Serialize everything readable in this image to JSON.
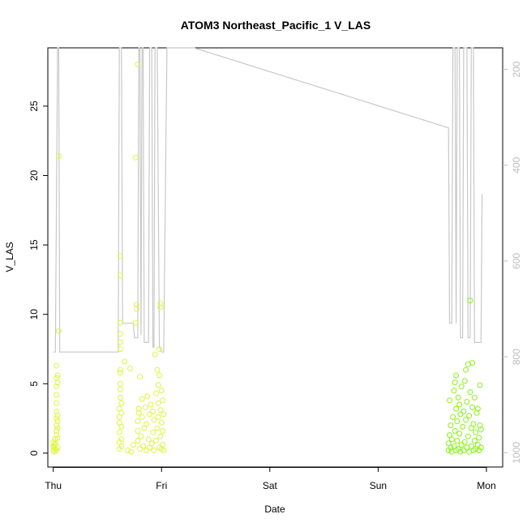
{
  "chart_data": {
    "type": "scatter",
    "title": "ATOM3 Northeast_Pacific_1 V_LAS",
    "xlabel": "Date",
    "ylabel": "V_LAS",
    "x_ticks": [
      "Thu",
      "Fri",
      "Sat",
      "Sun",
      "Mon"
    ],
    "y_ticks": [
      0,
      5,
      10,
      15,
      20,
      25
    ],
    "right_ticks": [
      200,
      400,
      600,
      800,
      1000
    ],
    "x_range_days": [
      -0.05,
      4.15
    ],
    "ylim": [
      -1,
      29.2
    ],
    "right_ylim": [
      155,
      1030
    ],
    "colors": {
      "point_early": "#ddf542",
      "point_late": "#88f21a",
      "secondary_line": "#c8c8c8",
      "right_axis": "#bdbdbd"
    },
    "series": [
      {
        "type": "scatter",
        "points": [
          [
            0.0,
            0.2
          ],
          [
            0.0,
            0.5
          ],
          [
            0.0,
            0.8
          ],
          [
            0.01,
            0.1
          ],
          [
            0.01,
            0.4
          ],
          [
            0.01,
            0.6
          ],
          [
            0.02,
            0.3
          ],
          [
            0.02,
            0.7
          ],
          [
            0.02,
            1.0
          ],
          [
            0.03,
            0.2
          ],
          [
            0.03,
            1.3
          ],
          [
            0.03,
            1.6
          ],
          [
            0.03,
            2.0
          ],
          [
            0.03,
            2.5
          ],
          [
            0.03,
            3.0
          ],
          [
            0.03,
            3.6
          ],
          [
            0.03,
            4.2
          ],
          [
            0.03,
            4.8
          ],
          [
            0.03,
            5.4
          ],
          [
            0.03,
            6.3
          ],
          [
            0.04,
            0.4
          ],
          [
            0.04,
            1.1
          ],
          [
            0.04,
            1.8
          ],
          [
            0.04,
            2.3
          ],
          [
            0.04,
            2.7
          ],
          [
            0.04,
            5.1
          ],
          [
            0.04,
            5.6
          ],
          [
            0.05,
            21.4
          ],
          [
            0.05,
            8.8
          ],
          [
            0.61,
            0.3
          ],
          [
            0.61,
            0.8
          ],
          [
            0.61,
            1.5
          ],
          [
            0.61,
            2.2
          ],
          [
            0.61,
            2.6
          ],
          [
            0.61,
            3.2
          ],
          [
            0.62,
            4.0
          ],
          [
            0.62,
            4.6
          ],
          [
            0.62,
            5.0
          ],
          [
            0.62,
            5.8
          ],
          [
            0.62,
            6.0
          ],
          [
            0.62,
            7.5
          ],
          [
            0.62,
            8.0
          ],
          [
            0.62,
            8.6
          ],
          [
            0.62,
            9.4
          ],
          [
            0.62,
            12.8
          ],
          [
            0.62,
            14.2
          ],
          [
            0.63,
            0.5
          ],
          [
            0.63,
            1.0
          ],
          [
            0.63,
            1.9
          ],
          [
            0.63,
            2.9
          ],
          [
            0.63,
            3.6
          ],
          [
            0.66,
            6.6
          ],
          [
            0.69,
            0.2
          ],
          [
            0.71,
            6.1
          ],
          [
            0.72,
            0.1
          ],
          [
            0.74,
            0.6
          ],
          [
            0.76,
            9.4
          ],
          [
            0.76,
            21.3
          ],
          [
            0.77,
            10.4
          ],
          [
            0.77,
            10.7
          ],
          [
            0.78,
            28.0
          ],
          [
            0.78,
            0.9
          ],
          [
            0.78,
            1.6
          ],
          [
            0.78,
            2.3
          ],
          [
            0.79,
            3.2
          ],
          [
            0.79,
            2.9
          ],
          [
            0.8,
            5.5
          ],
          [
            0.8,
            0.3
          ],
          [
            0.81,
            1.2
          ],
          [
            0.82,
            2.6
          ],
          [
            0.82,
            3.9
          ],
          [
            0.83,
            0.5
          ],
          [
            0.84,
            1.8
          ],
          [
            0.85,
            3.3
          ],
          [
            0.86,
            0.2
          ],
          [
            0.86,
            2.1
          ],
          [
            0.87,
            4.1
          ],
          [
            0.88,
            1.0
          ],
          [
            0.89,
            2.8
          ],
          [
            0.89,
            0.4
          ],
          [
            0.9,
            3.5
          ],
          [
            0.91,
            0.7
          ],
          [
            0.92,
            1.5
          ],
          [
            0.92,
            3.0
          ],
          [
            0.93,
            0.2
          ],
          [
            0.93,
            2.4
          ],
          [
            0.94,
            7.1
          ],
          [
            0.95,
            0.9
          ],
          [
            0.95,
            4.3
          ],
          [
            0.96,
            1.8
          ],
          [
            0.96,
            6.0
          ],
          [
            0.97,
            2.6
          ],
          [
            0.97,
            3.6
          ],
          [
            0.97,
            4.9
          ],
          [
            0.98,
            0.4
          ],
          [
            0.98,
            5.6
          ],
          [
            0.98,
            7.5
          ],
          [
            0.99,
            1.2
          ],
          [
            0.99,
            3.1
          ],
          [
            0.99,
            10.5
          ],
          [
            0.99,
            10.8
          ],
          [
            1.0,
            0.3
          ],
          [
            1.0,
            2.2
          ],
          [
            1.0,
            4.5
          ],
          [
            1.01,
            0.6
          ],
          [
            1.01,
            1.6
          ],
          [
            1.01,
            3.8
          ],
          [
            1.02,
            0.2
          ],
          [
            1.02,
            2.8
          ]
        ]
      },
      {
        "type": "scatter",
        "points": [
          [
            3.65,
            0.2
          ],
          [
            3.65,
            0.7
          ],
          [
            3.66,
            1.3
          ],
          [
            3.66,
            3.8
          ],
          [
            3.67,
            0.4
          ],
          [
            3.67,
            2.0
          ],
          [
            3.68,
            0.1
          ],
          [
            3.68,
            1.0
          ],
          [
            3.69,
            2.6
          ],
          [
            3.7,
            0.5
          ],
          [
            3.7,
            4.5
          ],
          [
            3.71,
            1.6
          ],
          [
            3.71,
            5.1
          ],
          [
            3.72,
            0.2
          ],
          [
            3.72,
            3.2
          ],
          [
            3.72,
            5.6
          ],
          [
            3.73,
            0.9
          ],
          [
            3.73,
            2.3
          ],
          [
            3.74,
            0.3
          ],
          [
            3.74,
            4.0
          ],
          [
            3.75,
            1.4
          ],
          [
            3.75,
            3.5
          ],
          [
            3.76,
            0.1
          ],
          [
            3.76,
            2.8
          ],
          [
            3.77,
            0.6
          ],
          [
            3.77,
            4.8
          ],
          [
            3.78,
            1.9
          ],
          [
            3.79,
            0.2
          ],
          [
            3.79,
            3.0
          ],
          [
            3.8,
            0.8
          ],
          [
            3.8,
            5.2
          ],
          [
            3.81,
            2.4
          ],
          [
            3.81,
            6.0
          ],
          [
            3.82,
            0.4
          ],
          [
            3.82,
            3.7
          ],
          [
            3.83,
            1.2
          ],
          [
            3.83,
            6.4
          ],
          [
            3.84,
            0.1
          ],
          [
            3.84,
            2.7
          ],
          [
            3.85,
            4.4
          ],
          [
            3.85,
            11.0
          ],
          [
            3.86,
            0.5
          ],
          [
            3.86,
            1.8
          ],
          [
            3.87,
            3.3
          ],
          [
            3.87,
            6.5
          ],
          [
            3.88,
            0.2
          ],
          [
            3.88,
            2.1
          ],
          [
            3.89,
            0.9
          ],
          [
            3.89,
            4.0
          ],
          [
            3.9,
            0.3
          ],
          [
            3.9,
            1.5
          ],
          [
            3.91,
            2.9
          ],
          [
            3.92,
            0.6
          ],
          [
            3.92,
            3.2
          ],
          [
            3.93,
            0.2
          ],
          [
            3.93,
            1.1
          ],
          [
            3.94,
            2.0
          ],
          [
            3.94,
            4.9
          ],
          [
            3.95,
            0.4
          ],
          [
            3.95,
            1.7
          ]
        ]
      },
      {
        "type": "line",
        "axis": "right",
        "points": [
          [
            0.0,
            790
          ],
          [
            0.02,
            790
          ],
          [
            0.04,
            155
          ],
          [
            0.05,
            155
          ],
          [
            0.06,
            790
          ],
          [
            0.6,
            790
          ],
          [
            0.61,
            155
          ],
          [
            0.63,
            155
          ],
          [
            0.64,
            730
          ],
          [
            0.74,
            730
          ],
          [
            0.75,
            760
          ],
          [
            0.78,
            760
          ],
          [
            0.79,
            155
          ],
          [
            0.8,
            155
          ],
          [
            0.81,
            755
          ],
          [
            0.82,
            155
          ],
          [
            0.83,
            155
          ],
          [
            0.84,
            770
          ],
          [
            0.88,
            770
          ],
          [
            0.89,
            155
          ],
          [
            0.91,
            155
          ],
          [
            0.92,
            780
          ],
          [
            0.93,
            780
          ],
          [
            0.94,
            155
          ],
          [
            0.96,
            155
          ],
          [
            0.98,
            780
          ],
          [
            1.0,
            790
          ],
          [
            1.02,
            790
          ],
          [
            1.05,
            155
          ],
          [
            1.3,
            155
          ],
          [
            3.65,
            322
          ],
          [
            3.66,
            730
          ],
          [
            3.68,
            730
          ],
          [
            3.69,
            155
          ],
          [
            3.71,
            155
          ],
          [
            3.72,
            730
          ],
          [
            3.73,
            155
          ],
          [
            3.75,
            155
          ],
          [
            3.76,
            760
          ],
          [
            3.78,
            760
          ],
          [
            3.79,
            155
          ],
          [
            3.82,
            155
          ],
          [
            3.83,
            760
          ],
          [
            3.85,
            760
          ],
          [
            3.86,
            155
          ],
          [
            3.88,
            155
          ],
          [
            3.89,
            770
          ],
          [
            3.95,
            770
          ],
          [
            3.96,
            460
          ]
        ]
      }
    ]
  }
}
